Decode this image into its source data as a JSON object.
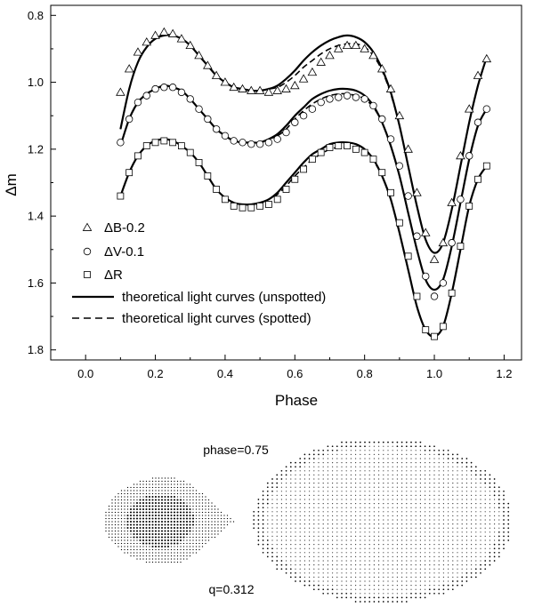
{
  "chart_data": {
    "type": "scatter",
    "xlabel": "Phase",
    "ylabel": "Δm",
    "xlim": [
      -0.1,
      1.25
    ],
    "ylim": [
      1.83,
      0.77
    ],
    "y_inverted": true,
    "xticks": [
      "0.0",
      "0.2",
      "0.4",
      "0.6",
      "0.8",
      "1.0",
      "1.2"
    ],
    "yticks": [
      "0.8",
      "1.0",
      "1.2",
      "1.4",
      "1.6",
      "1.8"
    ],
    "grid": false,
    "legend_position": "bottom-left",
    "legend": [
      {
        "marker": "triangle",
        "label": "ΔB-0.2"
      },
      {
        "marker": "circle",
        "label": "ΔV-0.1"
      },
      {
        "marker": "square",
        "label": "ΔR"
      },
      {
        "line": "solid",
        "label": "theoretical light curves (unspotted)"
      },
      {
        "line": "dashed",
        "label": "theoretical light curves (spotted)"
      }
    ],
    "series": [
      {
        "marker": "triangle",
        "x": [
          0.1,
          0.125,
          0.15,
          0.175,
          0.2,
          0.225,
          0.25,
          0.275,
          0.3,
          0.325,
          0.35,
          0.375,
          0.4,
          0.425,
          0.45,
          0.475,
          0.5,
          0.525,
          0.55,
          0.575,
          0.6,
          0.625,
          0.65,
          0.675,
          0.7,
          0.725,
          0.75,
          0.775,
          0.8,
          0.825,
          0.85,
          0.875,
          0.9,
          0.925,
          0.95,
          0.975,
          1.0,
          1.025,
          1.05,
          1.075,
          1.1,
          1.125,
          1.15
        ],
        "y": [
          1.03,
          0.96,
          0.91,
          0.88,
          0.86,
          0.85,
          0.855,
          0.87,
          0.89,
          0.92,
          0.95,
          0.98,
          1.0,
          1.015,
          1.02,
          1.025,
          1.025,
          1.03,
          1.025,
          1.02,
          1.01,
          0.99,
          0.97,
          0.94,
          0.92,
          0.9,
          0.89,
          0.89,
          0.9,
          0.92,
          0.96,
          1.02,
          1.1,
          1.2,
          1.33,
          1.45,
          1.53,
          1.48,
          1.36,
          1.22,
          1.08,
          0.98,
          0.93
        ]
      },
      {
        "marker": "circle",
        "x": [
          0.1,
          0.125,
          0.15,
          0.175,
          0.2,
          0.225,
          0.25,
          0.275,
          0.3,
          0.325,
          0.35,
          0.375,
          0.4,
          0.425,
          0.45,
          0.475,
          0.5,
          0.525,
          0.55,
          0.575,
          0.6,
          0.625,
          0.65,
          0.675,
          0.7,
          0.725,
          0.75,
          0.775,
          0.8,
          0.825,
          0.85,
          0.875,
          0.9,
          0.925,
          0.95,
          0.975,
          1.0,
          1.025,
          1.05,
          1.075,
          1.1,
          1.125,
          1.15
        ],
        "y": [
          1.18,
          1.11,
          1.06,
          1.04,
          1.02,
          1.015,
          1.015,
          1.03,
          1.05,
          1.08,
          1.11,
          1.14,
          1.16,
          1.175,
          1.18,
          1.185,
          1.185,
          1.18,
          1.17,
          1.15,
          1.12,
          1.1,
          1.08,
          1.06,
          1.05,
          1.045,
          1.04,
          1.045,
          1.05,
          1.07,
          1.11,
          1.17,
          1.25,
          1.34,
          1.46,
          1.58,
          1.64,
          1.6,
          1.48,
          1.35,
          1.22,
          1.12,
          1.08
        ]
      },
      {
        "marker": "square",
        "x": [
          0.1,
          0.125,
          0.15,
          0.175,
          0.2,
          0.225,
          0.25,
          0.275,
          0.3,
          0.325,
          0.35,
          0.375,
          0.4,
          0.425,
          0.45,
          0.475,
          0.5,
          0.525,
          0.55,
          0.575,
          0.6,
          0.625,
          0.65,
          0.675,
          0.7,
          0.725,
          0.75,
          0.775,
          0.8,
          0.825,
          0.85,
          0.875,
          0.9,
          0.925,
          0.95,
          0.975,
          1.0,
          1.025,
          1.05,
          1.075,
          1.1,
          1.125,
          1.15
        ],
        "y": [
          1.34,
          1.27,
          1.22,
          1.19,
          1.18,
          1.175,
          1.18,
          1.19,
          1.21,
          1.24,
          1.28,
          1.32,
          1.35,
          1.37,
          1.375,
          1.375,
          1.37,
          1.365,
          1.35,
          1.32,
          1.29,
          1.26,
          1.23,
          1.21,
          1.195,
          1.19,
          1.19,
          1.2,
          1.21,
          1.23,
          1.27,
          1.33,
          1.42,
          1.52,
          1.64,
          1.74,
          1.76,
          1.73,
          1.63,
          1.49,
          1.37,
          1.29,
          1.25
        ]
      }
    ],
    "model_curves": [
      {
        "line": "solid",
        "x": [
          0.1,
          0.125,
          0.15,
          0.175,
          0.2,
          0.225,
          0.25,
          0.275,
          0.3,
          0.325,
          0.35,
          0.375,
          0.4,
          0.425,
          0.45,
          0.475,
          0.5,
          0.525,
          0.55,
          0.575,
          0.6,
          0.625,
          0.65,
          0.675,
          0.7,
          0.725,
          0.75,
          0.775,
          0.8,
          0.825,
          0.85,
          0.875,
          0.9,
          0.925,
          0.95,
          0.975,
          1.0,
          1.025,
          1.05,
          1.075,
          1.1,
          1.125,
          1.15
        ],
        "y": [
          1.14,
          1.02,
          0.94,
          0.895,
          0.87,
          0.86,
          0.86,
          0.87,
          0.89,
          0.92,
          0.95,
          0.98,
          1.0,
          1.015,
          1.02,
          1.025,
          1.025,
          1.02,
          1.01,
          0.99,
          0.965,
          0.935,
          0.91,
          0.89,
          0.875,
          0.865,
          0.86,
          0.865,
          0.88,
          0.91,
          0.96,
          1.03,
          1.13,
          1.25,
          1.37,
          1.47,
          1.51,
          1.48,
          1.38,
          1.25,
          1.12,
          1.01,
          0.925
        ]
      },
      {
        "line": "dashed",
        "x": [
          0.1,
          0.125,
          0.15,
          0.175,
          0.2,
          0.225,
          0.25,
          0.275,
          0.3,
          0.325,
          0.35,
          0.375,
          0.4,
          0.425,
          0.45,
          0.475,
          0.5,
          0.525,
          0.55,
          0.575,
          0.6,
          0.625,
          0.65,
          0.675,
          0.7,
          0.725,
          0.75,
          0.775,
          0.8,
          0.825,
          0.85,
          0.875,
          0.9,
          0.925,
          0.95,
          0.975,
          1.0,
          1.025,
          1.05,
          1.075,
          1.1,
          1.125,
          1.15
        ],
        "y": [
          1.14,
          1.02,
          0.94,
          0.895,
          0.87,
          0.86,
          0.86,
          0.87,
          0.89,
          0.92,
          0.95,
          0.98,
          1.0,
          1.015,
          1.02,
          1.025,
          1.025,
          1.02,
          1.015,
          1.0,
          0.98,
          0.955,
          0.935,
          0.915,
          0.9,
          0.89,
          0.885,
          0.885,
          0.895,
          0.92,
          0.965,
          1.035,
          1.13,
          1.25,
          1.37,
          1.47,
          1.51,
          1.48,
          1.38,
          1.25,
          1.12,
          1.01,
          0.925
        ]
      },
      {
        "line": "solid",
        "x": [
          0.1,
          0.125,
          0.15,
          0.175,
          0.2,
          0.225,
          0.25,
          0.275,
          0.3,
          0.325,
          0.35,
          0.375,
          0.4,
          0.425,
          0.45,
          0.475,
          0.5,
          0.525,
          0.55,
          0.575,
          0.6,
          0.625,
          0.65,
          0.675,
          0.7,
          0.725,
          0.75,
          0.775,
          0.8,
          0.825,
          0.85,
          0.875,
          0.9,
          0.925,
          0.95,
          0.975,
          1.0,
          1.025,
          1.05,
          1.075,
          1.1,
          1.125,
          1.15
        ],
        "y": [
          1.19,
          1.11,
          1.06,
          1.035,
          1.02,
          1.01,
          1.015,
          1.025,
          1.05,
          1.08,
          1.11,
          1.14,
          1.16,
          1.175,
          1.18,
          1.18,
          1.18,
          1.17,
          1.155,
          1.13,
          1.1,
          1.075,
          1.05,
          1.035,
          1.025,
          1.02,
          1.02,
          1.025,
          1.04,
          1.07,
          1.12,
          1.19,
          1.28,
          1.39,
          1.5,
          1.59,
          1.62,
          1.59,
          1.49,
          1.36,
          1.23,
          1.13,
          1.08
        ]
      },
      {
        "line": "dashed",
        "x": [
          0.1,
          0.125,
          0.15,
          0.175,
          0.2,
          0.225,
          0.25,
          0.275,
          0.3,
          0.325,
          0.35,
          0.375,
          0.4,
          0.425,
          0.45,
          0.475,
          0.5,
          0.525,
          0.55,
          0.575,
          0.6,
          0.625,
          0.65,
          0.675,
          0.7,
          0.725,
          0.75,
          0.775,
          0.8,
          0.825,
          0.85,
          0.875,
          0.9,
          0.925,
          0.95,
          0.975,
          1.0,
          1.025,
          1.05,
          1.075,
          1.1,
          1.125,
          1.15
        ],
        "y": [
          1.19,
          1.11,
          1.06,
          1.035,
          1.02,
          1.01,
          1.015,
          1.025,
          1.05,
          1.08,
          1.11,
          1.14,
          1.16,
          1.175,
          1.18,
          1.18,
          1.18,
          1.17,
          1.16,
          1.14,
          1.11,
          1.085,
          1.065,
          1.05,
          1.04,
          1.035,
          1.035,
          1.04,
          1.05,
          1.075,
          1.12,
          1.19,
          1.28,
          1.39,
          1.5,
          1.59,
          1.62,
          1.59,
          1.49,
          1.36,
          1.23,
          1.13,
          1.08
        ]
      },
      {
        "line": "solid",
        "x": [
          0.1,
          0.125,
          0.15,
          0.175,
          0.2,
          0.225,
          0.25,
          0.275,
          0.3,
          0.325,
          0.35,
          0.375,
          0.4,
          0.425,
          0.45,
          0.475,
          0.5,
          0.525,
          0.55,
          0.575,
          0.6,
          0.625,
          0.65,
          0.675,
          0.7,
          0.725,
          0.75,
          0.775,
          0.8,
          0.825,
          0.85,
          0.875,
          0.9,
          0.925,
          0.95,
          0.975,
          1.0,
          1.025,
          1.05,
          1.075,
          1.1,
          1.125,
          1.15
        ],
        "y": [
          1.34,
          1.27,
          1.22,
          1.19,
          1.175,
          1.17,
          1.175,
          1.19,
          1.21,
          1.24,
          1.28,
          1.32,
          1.345,
          1.36,
          1.365,
          1.365,
          1.36,
          1.35,
          1.33,
          1.3,
          1.27,
          1.24,
          1.215,
          1.2,
          1.185,
          1.18,
          1.18,
          1.185,
          1.2,
          1.23,
          1.28,
          1.35,
          1.45,
          1.56,
          1.67,
          1.74,
          1.76,
          1.73,
          1.63,
          1.5,
          1.37,
          1.29,
          1.25
        ]
      },
      {
        "line": "dashed",
        "x": [
          0.1,
          0.125,
          0.15,
          0.175,
          0.2,
          0.225,
          0.25,
          0.275,
          0.3,
          0.325,
          0.35,
          0.375,
          0.4,
          0.425,
          0.45,
          0.475,
          0.5,
          0.525,
          0.55,
          0.575,
          0.6,
          0.625,
          0.65,
          0.675,
          0.7,
          0.725,
          0.75,
          0.775,
          0.8,
          0.825,
          0.85,
          0.875,
          0.9,
          0.925,
          0.95,
          0.975,
          1.0,
          1.025,
          1.05,
          1.075,
          1.1,
          1.125,
          1.15
        ],
        "y": [
          1.34,
          1.27,
          1.22,
          1.19,
          1.175,
          1.17,
          1.175,
          1.19,
          1.21,
          1.24,
          1.28,
          1.32,
          1.345,
          1.36,
          1.365,
          1.365,
          1.36,
          1.35,
          1.335,
          1.31,
          1.28,
          1.255,
          1.23,
          1.215,
          1.2,
          1.195,
          1.195,
          1.2,
          1.21,
          1.235,
          1.28,
          1.35,
          1.45,
          1.56,
          1.67,
          1.74,
          1.76,
          1.73,
          1.63,
          1.5,
          1.37,
          1.29,
          1.25
        ]
      }
    ]
  },
  "model_figure": {
    "phase_label": "phase=0.75",
    "q_label": "q=0.312"
  }
}
